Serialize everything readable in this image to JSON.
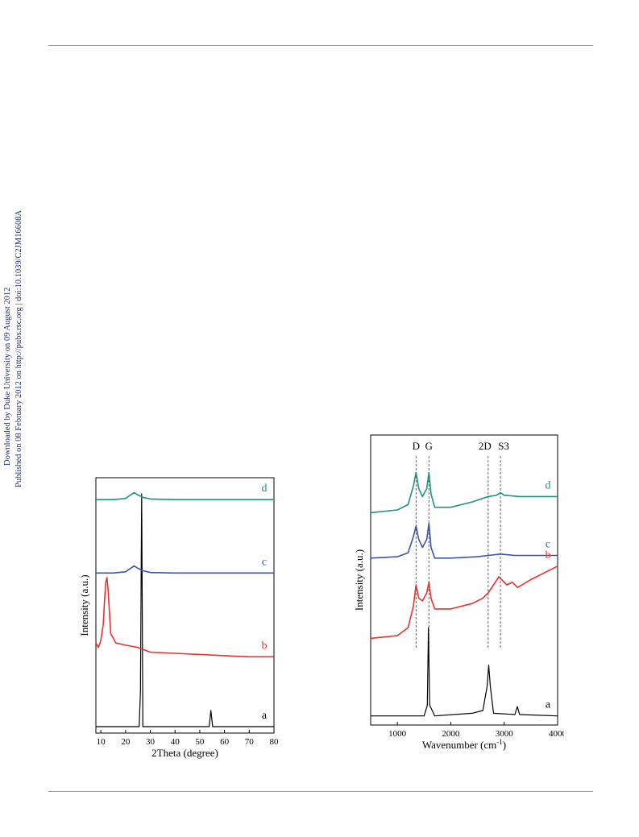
{
  "side_note": {
    "line1": "Downloaded by Duke University on 09 August 2012",
    "line2": "Published on 08 February 2012 on http://pubs.rsc.org | doi:10.1039/C2JM16608A"
  },
  "colors": {
    "a": "#000000",
    "b": "#e8322e",
    "c": "#3a55a8",
    "d": "#1f8f88"
  },
  "chart_data": [
    {
      "type": "line",
      "xlabel": "2Theta (degree)",
      "ylabel": "Intensity (a.u.)",
      "xlim": [
        8,
        80
      ],
      "xticks": [
        10,
        20,
        30,
        40,
        50,
        60,
        70,
        80
      ],
      "series": [
        {
          "name": "a",
          "x": [
            8,
            25.5,
            26.0,
            26.5,
            27.0,
            53.8,
            54.5,
            55.2,
            80
          ],
          "y": [
            0,
            0,
            0.15,
            1.0,
            0,
            0,
            0.07,
            0,
            0
          ]
        },
        {
          "name": "b",
          "x": [
            8,
            9,
            10,
            11,
            11.5,
            12,
            12.5,
            13,
            14,
            16,
            20,
            25,
            30,
            40,
            50,
            60,
            70,
            80
          ],
          "y": [
            0.36,
            0.34,
            0.37,
            0.44,
            0.54,
            0.62,
            0.64,
            0.58,
            0.4,
            0.36,
            0.35,
            0.34,
            0.32,
            0.315,
            0.31,
            0.305,
            0.3,
            0.3
          ]
        },
        {
          "name": "c",
          "x": [
            8,
            15,
            20,
            22,
            23.5,
            25,
            27,
            30,
            40,
            50,
            60,
            70,
            80
          ],
          "y": [
            0.66,
            0.66,
            0.665,
            0.68,
            0.69,
            0.68,
            0.67,
            0.662,
            0.66,
            0.66,
            0.66,
            0.66,
            0.66
          ]
        },
        {
          "name": "d",
          "x": [
            8,
            15,
            20,
            22,
            23.5,
            25,
            27,
            30,
            40,
            50,
            60,
            70,
            80
          ],
          "y": [
            0.975,
            0.975,
            0.98,
            0.995,
            1.005,
            0.995,
            0.985,
            0.978,
            0.975,
            0.975,
            0.975,
            0.975,
            0.975
          ]
        }
      ]
    },
    {
      "type": "line",
      "xlabel": "Wavenumber (cm",
      "xlabel_sup": "-1",
      "xlabel_end": ")",
      "ylabel": "Intensity (a.u.)",
      "xlim": [
        500,
        4000
      ],
      "xticks": [
        1000,
        2000,
        3000,
        4000
      ],
      "annotations": [
        {
          "label": "D",
          "x": 1350
        },
        {
          "label": "G",
          "x": 1590
        },
        {
          "label": "2D",
          "x": 2700
        },
        {
          "label": "S3",
          "x": 2930
        }
      ],
      "series": [
        {
          "name": "a",
          "x": [
            500,
            1000,
            1500,
            1560,
            1582,
            1605,
            1700,
            2400,
            2600,
            2680,
            2710,
            2740,
            2800,
            3200,
            3245,
            3290,
            4000
          ],
          "y": [
            0.01,
            0.01,
            0.01,
            0.05,
            0.34,
            0.05,
            0.01,
            0.02,
            0.03,
            0.12,
            0.2,
            0.12,
            0.02,
            0.015,
            0.045,
            0.015,
            0.01
          ]
        },
        {
          "name": "b",
          "x": [
            500,
            1000,
            1200,
            1300,
            1350,
            1400,
            1470,
            1550,
            1590,
            1630,
            1700,
            2000,
            2400,
            2600,
            2700,
            2800,
            2900,
            2950,
            3050,
            3150,
            3250,
            3500,
            4000
          ],
          "y": [
            0.3,
            0.31,
            0.34,
            0.42,
            0.5,
            0.45,
            0.44,
            0.47,
            0.51,
            0.45,
            0.41,
            0.41,
            0.43,
            0.45,
            0.47,
            0.5,
            0.53,
            0.52,
            0.5,
            0.51,
            0.49,
            0.52,
            0.57
          ]
        },
        {
          "name": "c",
          "x": [
            500,
            1000,
            1200,
            1300,
            1350,
            1400,
            1470,
            1550,
            1590,
            1630,
            1700,
            2000,
            2500,
            2700,
            2930,
            3200,
            4000
          ],
          "y": [
            0.6,
            0.605,
            0.62,
            0.68,
            0.72,
            0.67,
            0.64,
            0.67,
            0.73,
            0.64,
            0.6,
            0.6,
            0.605,
            0.61,
            0.615,
            0.61,
            0.61
          ]
        },
        {
          "name": "d",
          "x": [
            500,
            1000,
            1200,
            1300,
            1350,
            1400,
            1470,
            1550,
            1590,
            1630,
            1700,
            2000,
            2400,
            2700,
            2850,
            2930,
            3000,
            3300,
            3600,
            4000
          ],
          "y": [
            0.77,
            0.78,
            0.8,
            0.87,
            0.92,
            0.86,
            0.83,
            0.86,
            0.92,
            0.84,
            0.79,
            0.79,
            0.81,
            0.83,
            0.835,
            0.845,
            0.835,
            0.83,
            0.83,
            0.83
          ]
        }
      ]
    }
  ]
}
